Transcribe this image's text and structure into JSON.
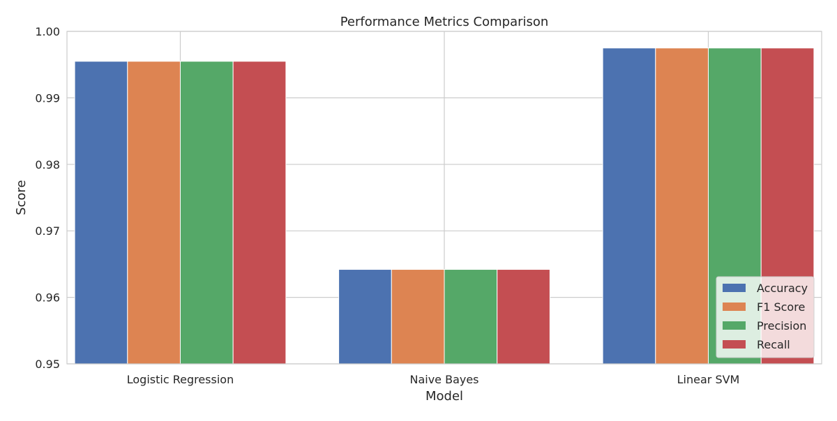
{
  "chart_data": {
    "type": "bar",
    "title": "Performance Metrics Comparison",
    "xlabel": "Model",
    "ylabel": "Score",
    "categories": [
      "Logistic Regression",
      "Naive Bayes",
      "Linear SVM"
    ],
    "series": [
      {
        "name": "Accuracy",
        "color": "#4c72b0",
        "values": [
          0.9955,
          0.9642,
          0.9975
        ]
      },
      {
        "name": "F1 Score",
        "color": "#dd8452",
        "values": [
          0.9955,
          0.9642,
          0.9975
        ]
      },
      {
        "name": "Precision",
        "color": "#55a868",
        "values": [
          0.9955,
          0.9642,
          0.9975
        ]
      },
      {
        "name": "Recall",
        "color": "#c44e52",
        "values": [
          0.9955,
          0.9642,
          0.9975
        ]
      }
    ],
    "ylim": [
      0.95,
      1.0
    ],
    "yticks": [
      "0.95",
      "0.96",
      "0.97",
      "0.98",
      "0.99",
      "1.00"
    ],
    "grid": true,
    "legend_position": "lower-right"
  }
}
